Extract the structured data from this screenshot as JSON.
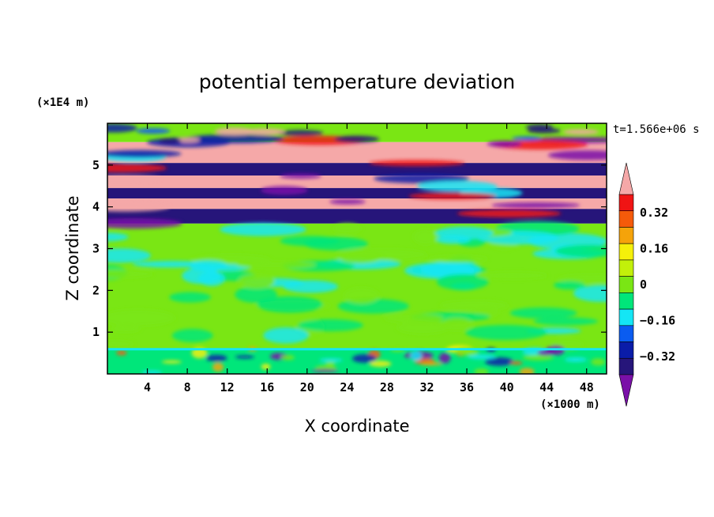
{
  "chart_data": {
    "type": "heatmap",
    "title": "potential temperature deviation",
    "xlabel": "X coordinate",
    "ylabel": "Z coordinate",
    "x_unit": "(×1000 m)",
    "y_unit": "(×1E4 m)",
    "time_label": "t=1.566e+06 s",
    "xlim": [
      0,
      50
    ],
    "ylim": [
      0,
      6
    ],
    "x_ticks": [
      4,
      8,
      12,
      16,
      20,
      24,
      28,
      32,
      36,
      40,
      44,
      48
    ],
    "y_ticks": [
      1,
      2,
      3,
      4,
      5
    ],
    "colorbar": {
      "levels": [
        -0.48,
        -0.4,
        -0.32,
        -0.24,
        -0.16,
        -0.08,
        0,
        0.08,
        0.16,
        0.24,
        0.32,
        0.4,
        0.48
      ],
      "tick_labels": [
        "0.32",
        "0.16",
        "0",
        "−0.16",
        "−0.32"
      ],
      "tick_values": [
        0.32,
        0.16,
        0,
        -0.16,
        -0.32
      ],
      "colors": [
        "#7a10a8",
        "#26157a",
        "#0a1ca8",
        "#0a5cf0",
        "#14e6f5",
        "#00e67a",
        "#7ae614",
        "#c2f00a",
        "#f5f00a",
        "#f5a30a",
        "#f55a0a",
        "#f01414",
        "#f5a8a8"
      ],
      "extend": "both"
    },
    "layers": [
      {
        "z": [
          5.55,
          6.0
        ],
        "value": 0.0
      },
      {
        "z": [
          5.05,
          5.55
        ],
        "value": 0.45
      },
      {
        "z": [
          4.75,
          5.05
        ],
        "value": -0.45
      },
      {
        "z": [
          4.45,
          4.75
        ],
        "value": 0.45
      },
      {
        "z": [
          4.2,
          4.45
        ],
        "value": -0.45
      },
      {
        "z": [
          3.95,
          4.2
        ],
        "value": 0.45
      },
      {
        "z": [
          3.6,
          3.95
        ],
        "value": -0.45
      },
      {
        "z": [
          0.6,
          3.6
        ],
        "value": 0.0
      },
      {
        "z": [
          0.0,
          0.6
        ],
        "value": -0.1
      }
    ]
  }
}
